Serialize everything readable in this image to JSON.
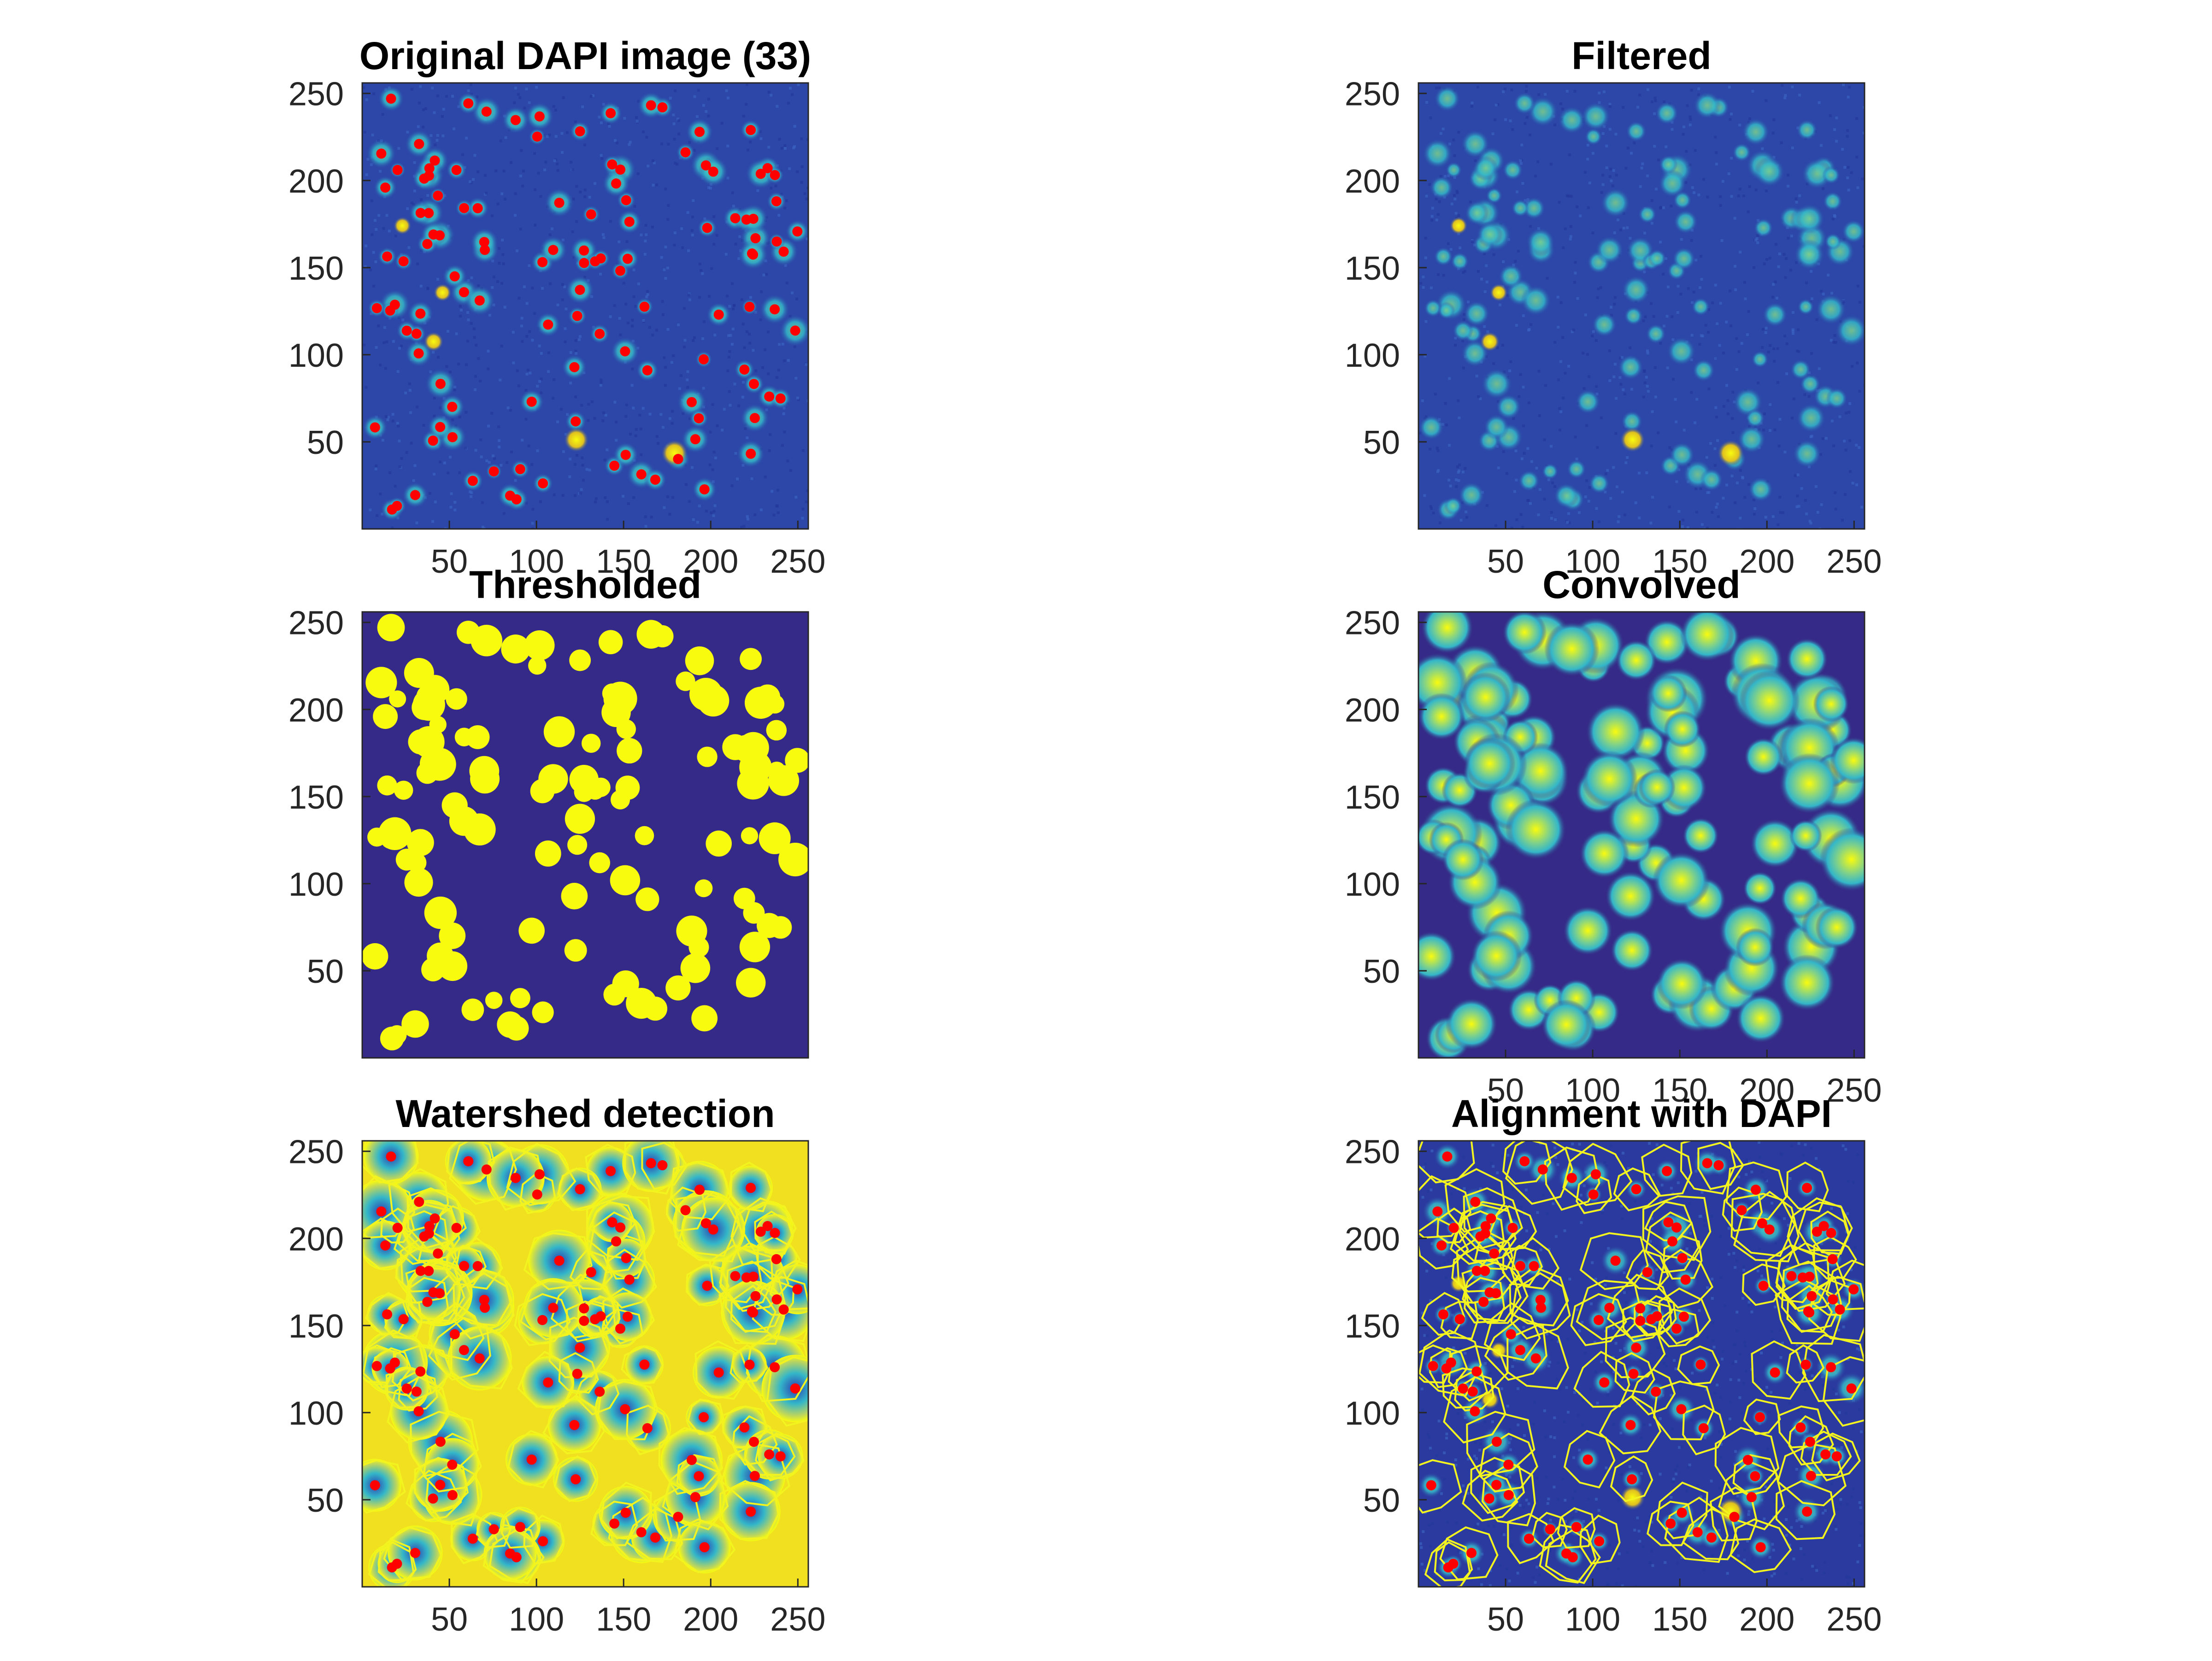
{
  "figure": {
    "panels": [
      {
        "id": "original",
        "title": "Original DAPI image (33)",
        "kind": "dapi",
        "markers": true,
        "segmentation": false,
        "x_ticks": [
          "50",
          "100",
          "150",
          "200",
          "250"
        ],
        "y_ticks": [
          "250",
          "200",
          "150",
          "100",
          "50"
        ]
      },
      {
        "id": "filtered",
        "title": "Filtered",
        "kind": "dapi",
        "markers": false,
        "segmentation": false,
        "x_ticks": [
          "50",
          "100",
          "150",
          "200",
          "250"
        ],
        "y_ticks": [
          "250",
          "200",
          "150",
          "100",
          "50"
        ]
      },
      {
        "id": "thresholded",
        "title": "Thresholded",
        "kind": "binary",
        "markers": false,
        "segmentation": false,
        "x_ticks": [],
        "y_ticks": [
          "250",
          "200",
          "150",
          "100",
          "50"
        ]
      },
      {
        "id": "convolved",
        "title": "Convolved",
        "kind": "convolved",
        "markers": false,
        "segmentation": false,
        "x_ticks": [
          "50",
          "100",
          "150",
          "200",
          "250"
        ],
        "y_ticks": [
          "250",
          "200",
          "150",
          "100",
          "50"
        ]
      },
      {
        "id": "watershed",
        "title": "Watershed detection",
        "kind": "gradient",
        "markers": true,
        "segmentation": true,
        "x_ticks": [
          "50",
          "100",
          "150",
          "200",
          "250"
        ],
        "y_ticks": [
          "250",
          "200",
          "150",
          "100",
          "50"
        ]
      },
      {
        "id": "alignment",
        "title": "Alignment with DAPI",
        "kind": "dapi-dark",
        "markers": true,
        "segmentation": true,
        "x_ticks": [
          "50",
          "100",
          "150",
          "200",
          "250"
        ],
        "y_ticks": [
          "250",
          "200",
          "150",
          "100",
          "50"
        ]
      }
    ],
    "colors": {
      "background_blue": "#2c47a8",
      "dark_blue": "#352a87",
      "cell_cyan": "#33b6c9",
      "cell_green": "#7fd18a",
      "bright_yellow": "#f9fb0e",
      "marker_red": "#ff0000",
      "segment_yellow": "#f3f31f",
      "tick_color": "#262626"
    }
  }
}
